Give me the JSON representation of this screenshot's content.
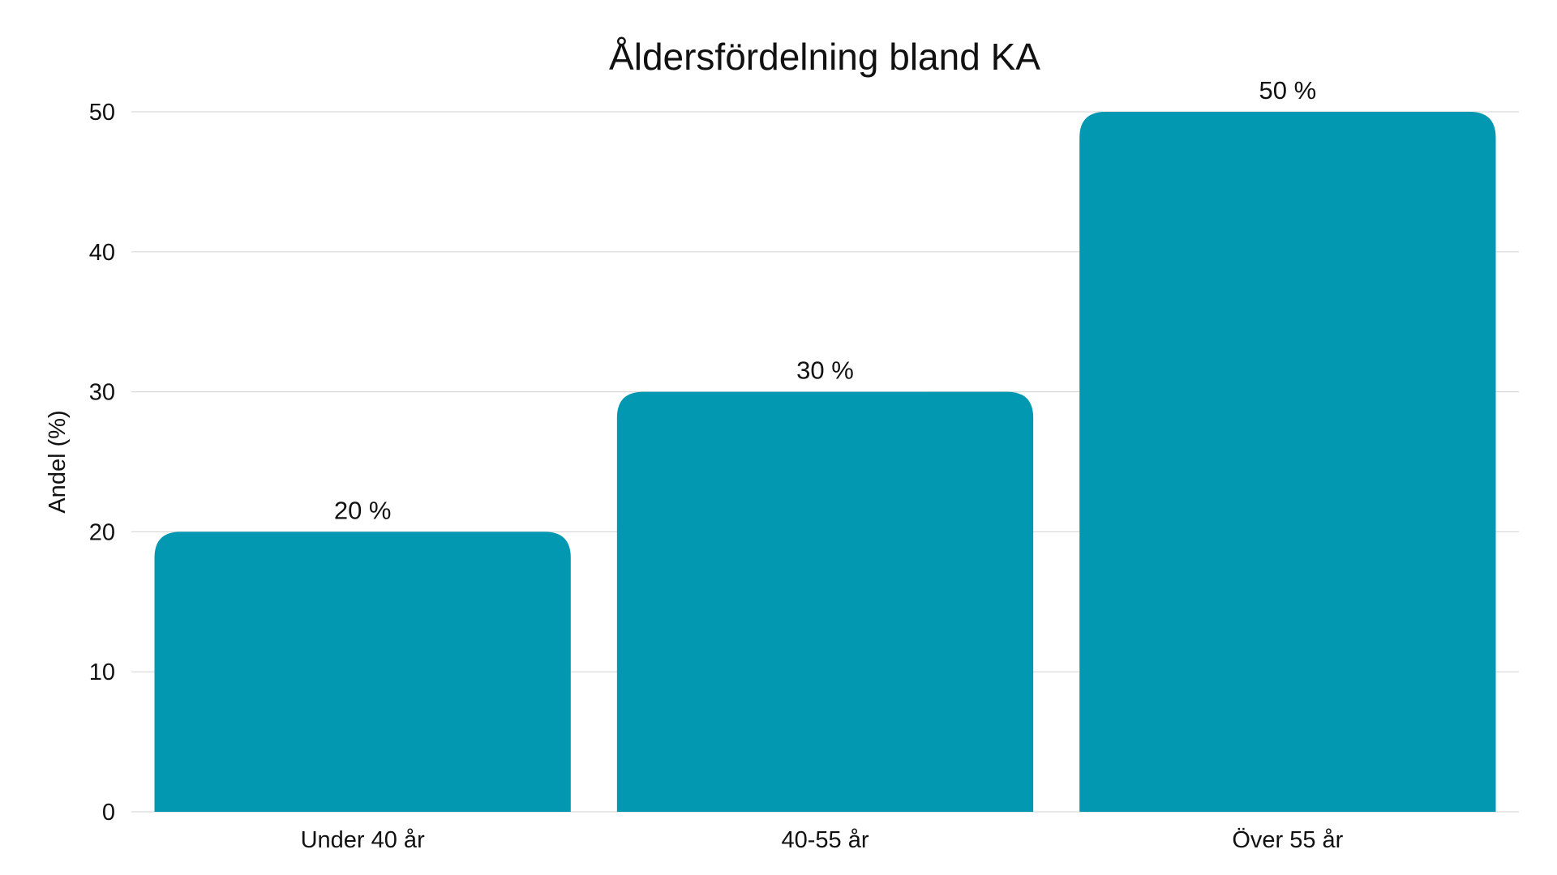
{
  "chart_data": {
    "type": "bar",
    "title": "Åldersfördelning bland KA",
    "xlabel": "",
    "ylabel": "Andel (%)",
    "categories": [
      "Under 40 år",
      "40-55 år",
      "Över 55 år"
    ],
    "values": [
      20,
      30,
      50
    ],
    "value_labels": [
      "20 %",
      "30 %",
      "50 %"
    ],
    "ylim": [
      0,
      50
    ],
    "yticks": [
      0,
      10,
      20,
      30,
      40,
      50
    ],
    "grid": true,
    "legend": "none",
    "bar_color": "#0298b2"
  }
}
